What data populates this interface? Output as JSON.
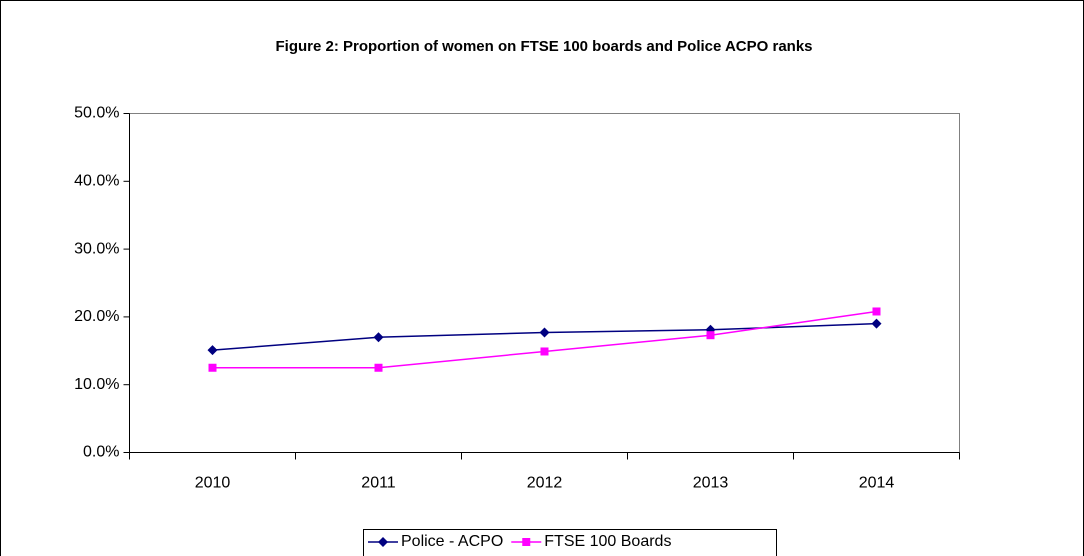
{
  "chart_data": {
    "type": "line",
    "title": "Figure 2: Proportion of women on FTSE 100 boards and Police ACPO ranks",
    "categories": [
      "2010",
      "2011",
      "2012",
      "2013",
      "2014"
    ],
    "series": [
      {
        "name": "Police - ACPO",
        "color": "#000080",
        "marker": "diamond",
        "values": [
          15.1,
          17.0,
          17.7,
          18.1,
          19.0
        ]
      },
      {
        "name": "FTSE 100 Boards",
        "color": "#ff00ff",
        "marker": "square",
        "values": [
          12.5,
          12.5,
          14.9,
          17.3,
          20.8
        ]
      }
    ],
    "ylim": [
      0,
      50
    ],
    "yticks": [
      {
        "value": 0,
        "label": "0.0%"
      },
      {
        "value": 10,
        "label": "10.0%"
      },
      {
        "value": 20,
        "label": "20.0%"
      },
      {
        "value": 30,
        "label": "30.0%"
      },
      {
        "value": 40,
        "label": "40.0%"
      },
      {
        "value": 50,
        "label": "50.0%"
      }
    ],
    "legend": "bottom"
  }
}
